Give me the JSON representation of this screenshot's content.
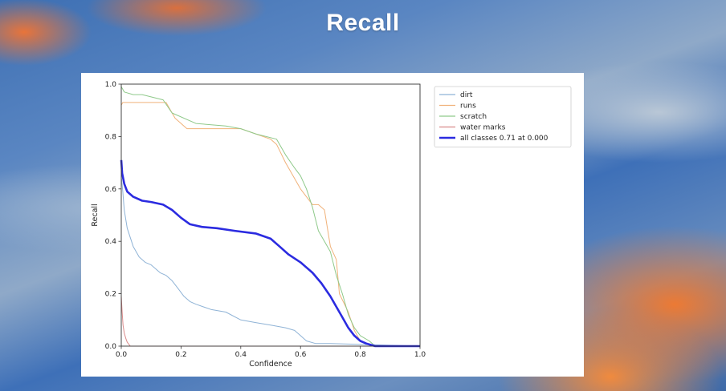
{
  "page": {
    "title": "Recall"
  },
  "chart_data": {
    "type": "line",
    "title": "",
    "xlabel": "Confidence",
    "ylabel": "Recall",
    "xlim": [
      0.0,
      1.0
    ],
    "ylim": [
      0.0,
      1.0
    ],
    "xticks": [
      "0.0",
      "0.2",
      "0.4",
      "0.6",
      "0.8",
      "1.0"
    ],
    "yticks": [
      "0.0",
      "0.2",
      "0.4",
      "0.6",
      "0.8",
      "1.0"
    ],
    "grid": false,
    "legend_position": "outside-top-right",
    "series": [
      {
        "name": "dirt",
        "color": "#8fb3d6",
        "width": 1,
        "x": [
          0.0,
          0.005,
          0.01,
          0.02,
          0.04,
          0.06,
          0.08,
          0.1,
          0.13,
          0.15,
          0.17,
          0.19,
          0.21,
          0.23,
          0.25,
          0.3,
          0.35,
          0.4,
          0.45,
          0.5,
          0.55,
          0.58,
          0.6,
          0.62,
          0.65,
          0.7,
          1.0
        ],
        "y": [
          0.65,
          0.59,
          0.52,
          0.45,
          0.38,
          0.34,
          0.32,
          0.31,
          0.28,
          0.27,
          0.25,
          0.22,
          0.19,
          0.17,
          0.16,
          0.14,
          0.13,
          0.1,
          0.09,
          0.08,
          0.07,
          0.06,
          0.04,
          0.02,
          0.01,
          0.01,
          0.0
        ]
      },
      {
        "name": "runs",
        "color": "#f0b27a",
        "width": 1,
        "x": [
          0.0,
          0.005,
          0.01,
          0.15,
          0.18,
          0.22,
          0.3,
          0.4,
          0.45,
          0.5,
          0.52,
          0.55,
          0.58,
          0.6,
          0.62,
          0.64,
          0.66,
          0.68,
          0.7,
          0.72,
          0.73,
          0.76,
          0.78,
          0.8,
          0.85,
          1.0
        ],
        "y": [
          0.92,
          0.93,
          0.93,
          0.93,
          0.87,
          0.83,
          0.83,
          0.83,
          0.81,
          0.79,
          0.77,
          0.7,
          0.64,
          0.6,
          0.57,
          0.54,
          0.54,
          0.52,
          0.38,
          0.33,
          0.2,
          0.13,
          0.06,
          0.02,
          0.0,
          0.0
        ]
      },
      {
        "name": "scratch",
        "color": "#8fc98a",
        "width": 1,
        "x": [
          0.0,
          0.005,
          0.01,
          0.04,
          0.07,
          0.14,
          0.17,
          0.25,
          0.35,
          0.4,
          0.45,
          0.52,
          0.55,
          0.58,
          0.6,
          0.62,
          0.64,
          0.66,
          0.68,
          0.7,
          0.72,
          0.74,
          0.76,
          0.78,
          0.8,
          0.83,
          0.85,
          1.0
        ],
        "y": [
          0.99,
          0.98,
          0.97,
          0.96,
          0.96,
          0.94,
          0.89,
          0.85,
          0.84,
          0.83,
          0.81,
          0.79,
          0.73,
          0.68,
          0.65,
          0.6,
          0.53,
          0.44,
          0.4,
          0.36,
          0.27,
          0.2,
          0.12,
          0.07,
          0.04,
          0.02,
          0.0,
          0.0
        ]
      },
      {
        "name": "water marks",
        "color": "#d98a8a",
        "width": 1,
        "x": [
          0.0,
          0.003,
          0.006,
          0.01,
          0.015,
          0.02,
          0.03,
          1.0
        ],
        "y": [
          0.19,
          0.13,
          0.08,
          0.05,
          0.03,
          0.015,
          0.0,
          0.0
        ]
      },
      {
        "name": "all classes 0.71 at 0.000",
        "color": "#2b2be0",
        "width": 2.6,
        "x": [
          0.0,
          0.003,
          0.01,
          0.02,
          0.04,
          0.07,
          0.1,
          0.14,
          0.17,
          0.2,
          0.23,
          0.27,
          0.32,
          0.38,
          0.45,
          0.5,
          0.53,
          0.56,
          0.6,
          0.64,
          0.67,
          0.7,
          0.72,
          0.74,
          0.76,
          0.78,
          0.8,
          0.82,
          0.85,
          1.0
        ],
        "y": [
          0.71,
          0.66,
          0.62,
          0.59,
          0.57,
          0.555,
          0.55,
          0.54,
          0.52,
          0.49,
          0.465,
          0.455,
          0.45,
          0.44,
          0.43,
          0.41,
          0.38,
          0.35,
          0.32,
          0.28,
          0.24,
          0.19,
          0.15,
          0.11,
          0.07,
          0.04,
          0.02,
          0.01,
          0.0,
          0.0
        ]
      }
    ]
  }
}
